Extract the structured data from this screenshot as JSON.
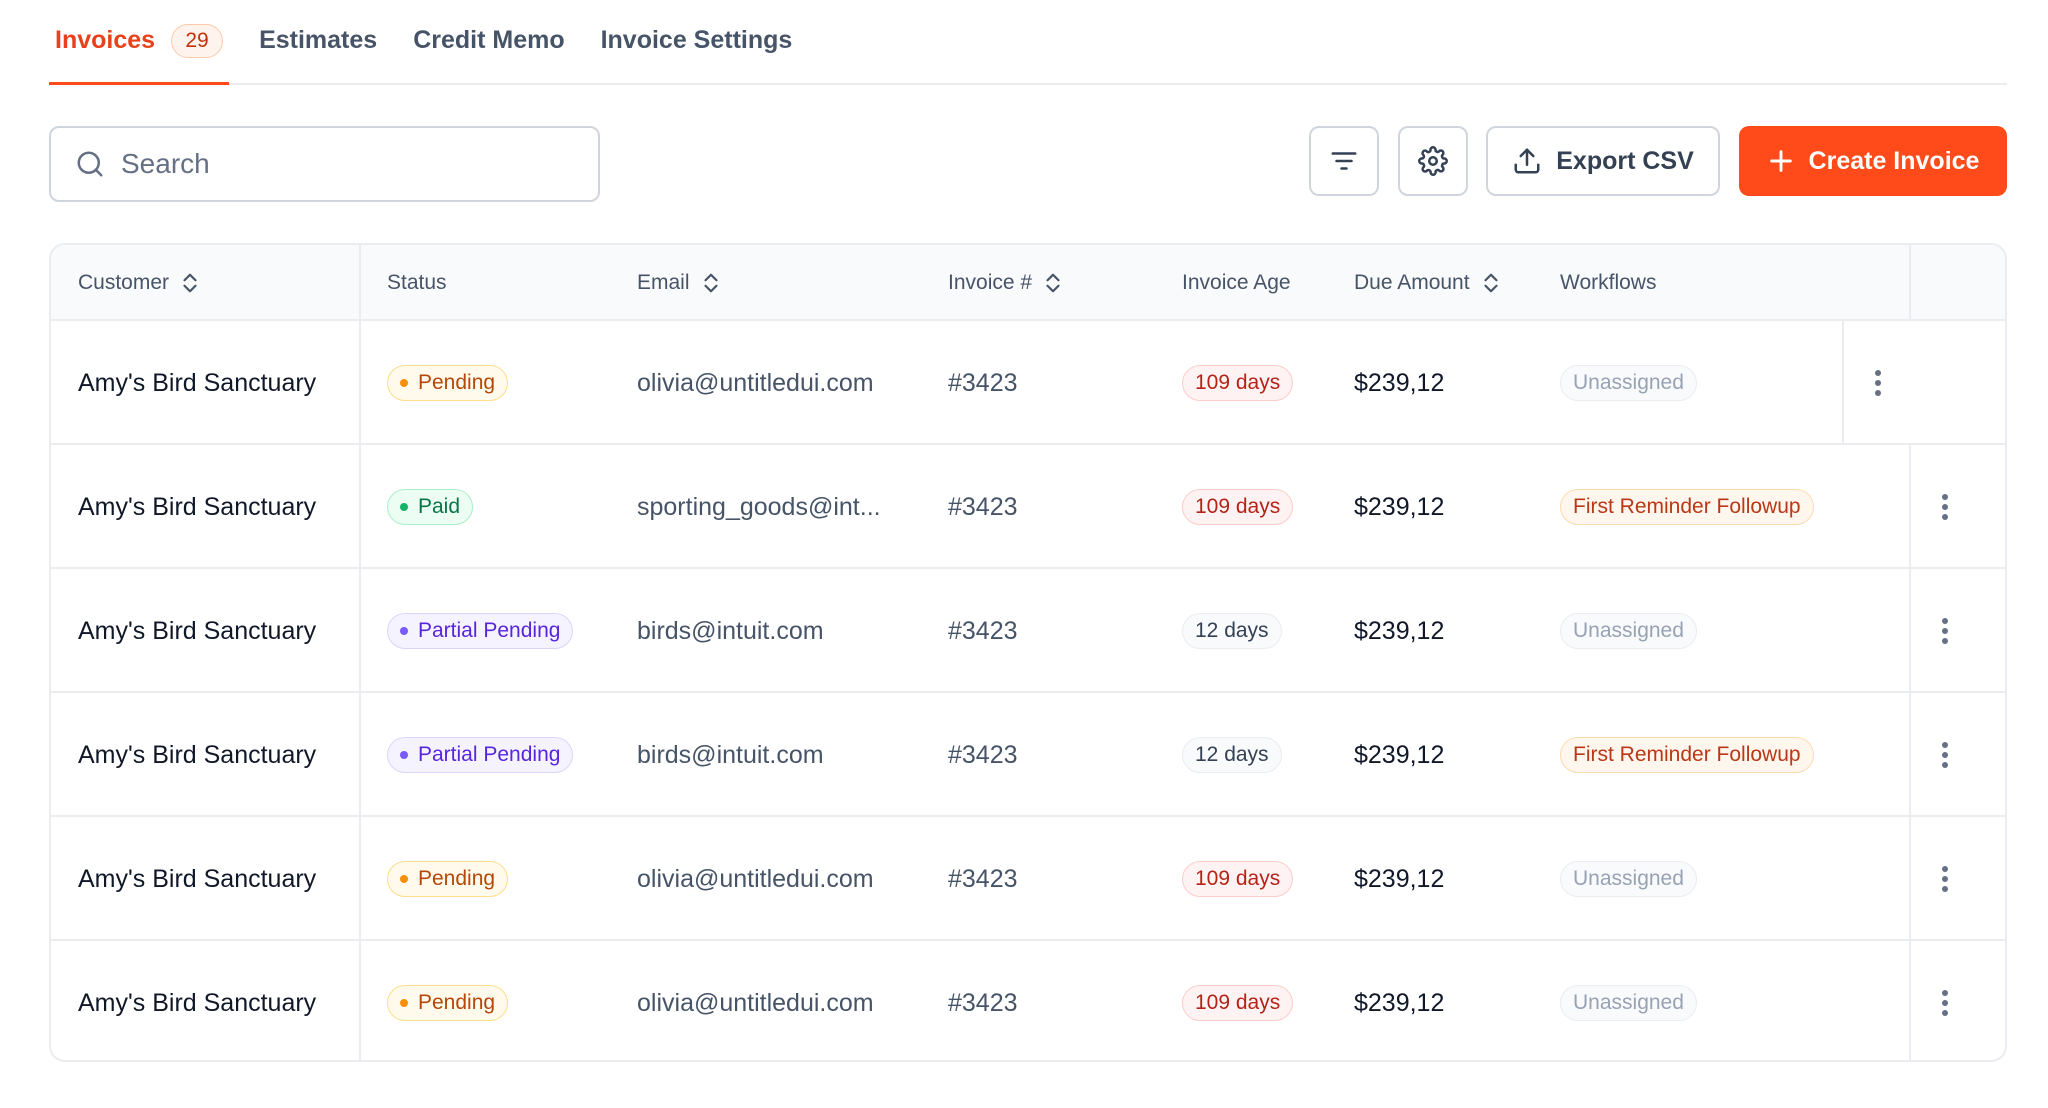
{
  "tabs": [
    {
      "label": "Invoices",
      "count": "29",
      "active": true
    },
    {
      "label": "Estimates"
    },
    {
      "label": "Credit Memo"
    },
    {
      "label": "Invoice Settings"
    }
  ],
  "toolbar": {
    "search_placeholder": "Search",
    "filter_icon": "filter-lines-icon",
    "settings_icon": "gear-icon",
    "export_label": "Export CSV",
    "create_label": "Create Invoice"
  },
  "table": {
    "columns": {
      "customer": "Customer",
      "status": "Status",
      "email": "Email",
      "invoice": "Invoice #",
      "age": "Invoice Age",
      "due": "Due Amount",
      "workflows": "Workflows"
    },
    "rows": [
      {
        "customer": "Amy's Bird Sanctuary",
        "status": "Pending",
        "email": "olivia@untitledui.com",
        "invoice": "#3423",
        "age": "109 days",
        "due": "$239,12",
        "workflow": "Unassigned"
      },
      {
        "customer": "Amy's Bird Sanctuary",
        "status": "Paid",
        "email": "sporting_goods@int...",
        "invoice": "#3423",
        "age": "109 days",
        "due": "$239,12",
        "workflow": "First Reminder Followup"
      },
      {
        "customer": "Amy's Bird Sanctuary",
        "status": "Partial Pending",
        "email": "birds@intuit.com",
        "invoice": "#3423",
        "age": "12 days",
        "due": "$239,12",
        "workflow": "Unassigned"
      },
      {
        "customer": "Amy's Bird Sanctuary",
        "status": "Partial Pending",
        "email": "birds@intuit.com",
        "invoice": "#3423",
        "age": "12 days",
        "due": "$239,12",
        "workflow": "First Reminder Followup"
      },
      {
        "customer": "Amy's Bird Sanctuary",
        "status": "Pending",
        "email": "olivia@untitledui.com",
        "invoice": "#3423",
        "age": "109 days",
        "due": "$239,12",
        "workflow": "Unassigned"
      },
      {
        "customer": "Amy's Bird Sanctuary",
        "status": "Pending",
        "email": "olivia@untitledui.com",
        "invoice": "#3423",
        "age": "109 days",
        "due": "$239,12",
        "workflow": "Unassigned"
      }
    ]
  },
  "colors": {
    "accent": "#ff4a1a",
    "pending": "#b54708",
    "paid": "#067647",
    "partial": "#5925dc",
    "age_overdue": "#b42318"
  }
}
